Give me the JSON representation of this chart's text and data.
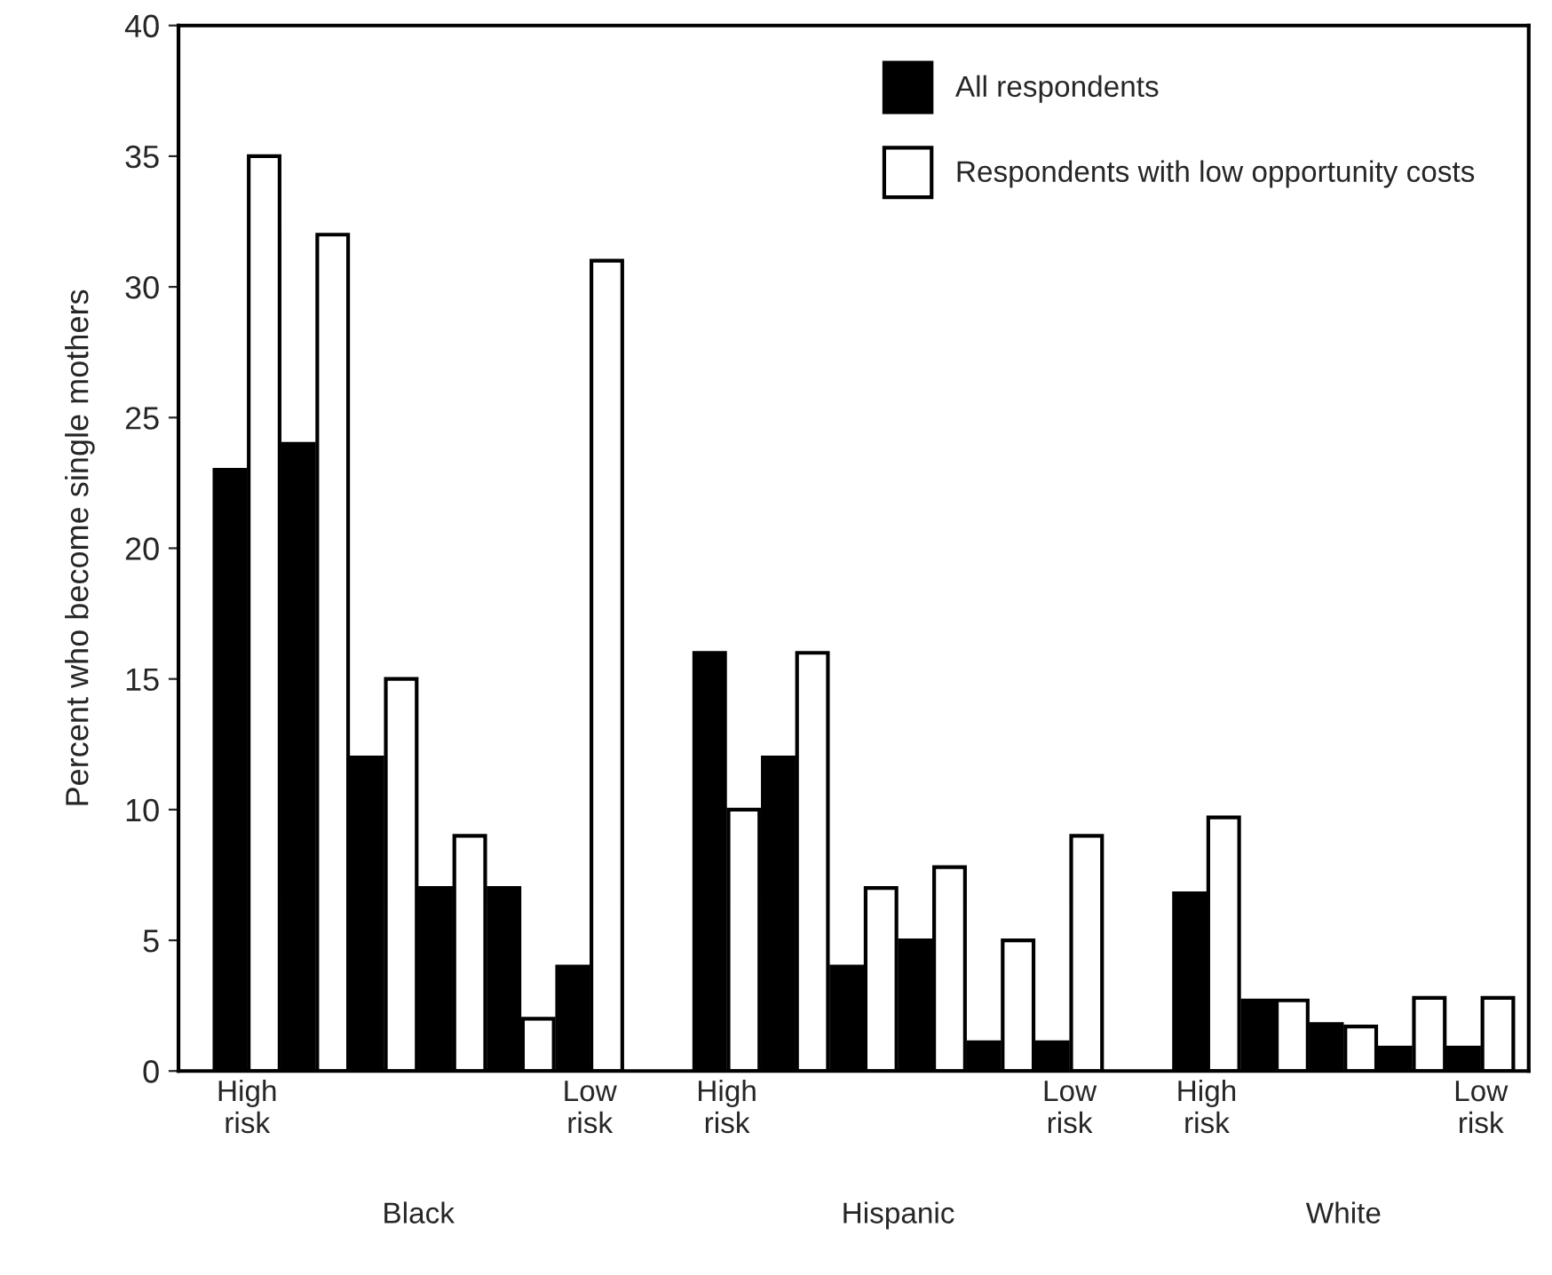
{
  "chart_data": {
    "type": "bar",
    "ylabel": "Percent who become single mothers",
    "categories": [
      "High\nrisk",
      null,
      null,
      null,
      null,
      "Low\nrisk",
      null,
      "High\nrisk",
      null,
      null,
      null,
      null,
      "Low\nrisk",
      null,
      "High\nrisk",
      null,
      null,
      null,
      "Low\nrisk"
    ],
    "series": [
      {
        "name": "All respondents",
        "color": "#000000",
        "values": [
          23,
          24,
          12,
          7,
          7,
          4,
          null,
          16,
          12,
          4,
          5,
          1.1,
          1.1,
          null,
          6.8,
          2.7,
          1.8,
          0.9,
          0.9
        ]
      },
      {
        "name": "Respondents with low opportunity costs",
        "color": "#ffffff",
        "values": [
          35,
          32,
          15,
          9,
          2,
          31,
          null,
          10,
          16,
          7,
          7.8,
          5,
          9,
          null,
          9.7,
          2.7,
          1.7,
          2.8,
          2.8
        ]
      }
    ],
    "ylim": [
      0,
      40
    ],
    "yticks": [
      0,
      5,
      10,
      15,
      20,
      25,
      30,
      35,
      40
    ],
    "legend": "top right",
    "annotations": [
      "Black",
      "Hispanic",
      "White"
    ]
  }
}
